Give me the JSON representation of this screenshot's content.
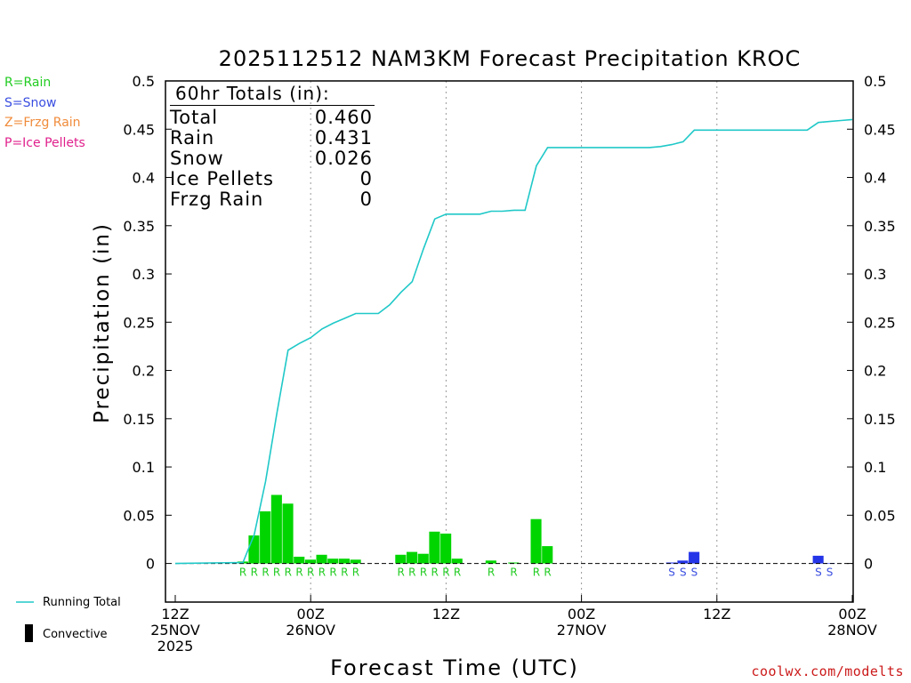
{
  "chart_data": {
    "type": "bar",
    "title": "2025112512 NAM3KM Forecast Precipitation KROC",
    "xlabel": "Forecast Time (UTC)",
    "ylabel": "Precipitation (in)",
    "ylim": [
      -0.04,
      0.5
    ],
    "xlim_hours": [
      0,
      60
    ],
    "yticks": [
      0,
      0.05,
      0.1,
      0.15,
      0.2,
      0.25,
      0.3,
      0.35,
      0.4,
      0.45,
      0.5
    ],
    "ytick_labels": [
      "0",
      "0.05",
      "0.1",
      "0.15",
      "0.2",
      "0.25",
      "0.3",
      "0.35",
      "0.4",
      "0.45",
      "0.5"
    ],
    "xticks": [
      {
        "hour": 0,
        "lines": [
          "12Z",
          "25NOV",
          "2025"
        ]
      },
      {
        "hour": 12,
        "lines": [
          "00Z",
          "26NOV"
        ]
      },
      {
        "hour": 24,
        "lines": [
          "12Z"
        ]
      },
      {
        "hour": 36,
        "lines": [
          "00Z",
          "27NOV"
        ]
      },
      {
        "hour": 48,
        "lines": [
          "12Z"
        ]
      },
      {
        "hour": 60,
        "lines": [
          "00Z",
          "28NOV"
        ]
      }
    ],
    "gridlines_hours": [
      12,
      24,
      36,
      48
    ],
    "bars": [
      {
        "hour": 6,
        "value": 0.002,
        "ptype": "R"
      },
      {
        "hour": 7,
        "value": 0.029,
        "ptype": "R"
      },
      {
        "hour": 8,
        "value": 0.054,
        "ptype": "R"
      },
      {
        "hour": 9,
        "value": 0.071,
        "ptype": "R"
      },
      {
        "hour": 10,
        "value": 0.062,
        "ptype": "R"
      },
      {
        "hour": 11,
        "value": 0.007,
        "ptype": "R"
      },
      {
        "hour": 12,
        "value": 0.004,
        "ptype": "R"
      },
      {
        "hour": 13,
        "value": 0.009,
        "ptype": "R"
      },
      {
        "hour": 14,
        "value": 0.005,
        "ptype": "R"
      },
      {
        "hour": 15,
        "value": 0.005,
        "ptype": "R"
      },
      {
        "hour": 16,
        "value": 0.004,
        "ptype": "R"
      },
      {
        "hour": 20,
        "value": 0.009,
        "ptype": "R"
      },
      {
        "hour": 21,
        "value": 0.012,
        "ptype": "R"
      },
      {
        "hour": 22,
        "value": 0.01,
        "ptype": "R"
      },
      {
        "hour": 23,
        "value": 0.033,
        "ptype": "R"
      },
      {
        "hour": 24,
        "value": 0.031,
        "ptype": "R"
      },
      {
        "hour": 25,
        "value": 0.005,
        "ptype": "R"
      },
      {
        "hour": 28,
        "value": 0.003,
        "ptype": "R"
      },
      {
        "hour": 30,
        "value": 0.001,
        "ptype": "R"
      },
      {
        "hour": 32,
        "value": 0.046,
        "ptype": "R"
      },
      {
        "hour": 33,
        "value": 0.018,
        "ptype": "R"
      },
      {
        "hour": 44,
        "value": 0.001,
        "ptype": "S"
      },
      {
        "hour": 45,
        "value": 0.003,
        "ptype": "S"
      },
      {
        "hour": 46,
        "value": 0.012,
        "ptype": "S"
      },
      {
        "hour": 57,
        "value": 0.008,
        "ptype": "S"
      },
      {
        "hour": 58,
        "value": 0.0005,
        "ptype": "S"
      }
    ],
    "running_total": {
      "hours": [
        0,
        6,
        7,
        8,
        9,
        10,
        11,
        12,
        13,
        14,
        15,
        16,
        17,
        18,
        19,
        20,
        21,
        22,
        23,
        24,
        25,
        26,
        27,
        28,
        29,
        30,
        31,
        32,
        33,
        34,
        35,
        36,
        37,
        38,
        39,
        40,
        41,
        42,
        43,
        44,
        45,
        46,
        47,
        48,
        49,
        50,
        51,
        52,
        53,
        54,
        55,
        56,
        57,
        58,
        59,
        60
      ],
      "values": [
        0,
        0.001,
        0.03,
        0.085,
        0.155,
        0.221,
        0.228,
        0.234,
        0.243,
        0.249,
        0.254,
        0.259,
        0.259,
        0.259,
        0.268,
        0.281,
        0.292,
        0.326,
        0.357,
        0.362,
        0.362,
        0.362,
        0.362,
        0.365,
        0.365,
        0.366,
        0.366,
        0.412,
        0.431,
        0.431,
        0.431,
        0.431,
        0.431,
        0.431,
        0.431,
        0.431,
        0.431,
        0.431,
        0.432,
        0.434,
        0.437,
        0.449,
        0.449,
        0.449,
        0.449,
        0.449,
        0.449,
        0.449,
        0.449,
        0.449,
        0.449,
        0.449,
        0.457,
        0.458,
        0.459,
        0.46
      ]
    },
    "totals_box": {
      "header": "60hr Totals (in):",
      "rows": [
        {
          "label": "Total",
          "value": "0.460"
        },
        {
          "label": "Rain",
          "value": "0.431"
        },
        {
          "label": "Snow",
          "value": "0.026"
        },
        {
          "label": "Ice Pellets",
          "value": "0"
        },
        {
          "label": "Frzg Rain",
          "value": "0"
        }
      ]
    },
    "precip_type_legend": [
      {
        "text": "R=Rain",
        "color": "#22cc22"
      },
      {
        "text": "S=Snow",
        "color": "#3a4ee0"
      },
      {
        "text": "Z=Frzg Rain",
        "color": "#f08c3c"
      },
      {
        "text": "P=Ice Pellets",
        "color": "#e0208c"
      }
    ],
    "series_legend": [
      {
        "text": "Running Total",
        "color": "#20c8c8"
      },
      {
        "text": "Convective",
        "color": "#000000"
      }
    ],
    "colors": {
      "rain": "#00d500",
      "snow": "#2435e8",
      "running_total": "#20c8c8"
    }
  },
  "watermark": "coolwx.com/modelts"
}
